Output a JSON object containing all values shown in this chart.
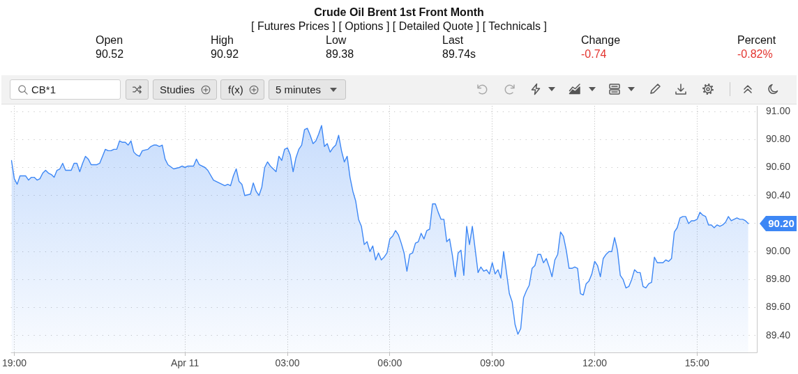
{
  "chart_data": {
    "type": "area",
    "title": "Crude Oil Brent 1st Front Month",
    "subtitle": "[ Futures Prices ] [ Options ] [ Detailed Quote ] [ Technicals ]",
    "annotations": [
      "Open",
      "90.52",
      "High",
      "90.92",
      "Low",
      "89.38",
      "Last",
      "89.74s",
      "Change",
      "-0.74",
      "Percent",
      "-0.82%",
      "CB*1",
      "Studies",
      "f(x)",
      "5 minutes",
      {
        "text": "90.20",
        "x": "--04-11T16:30",
        "y": 90.2
      }
    ],
    "x": [
      "--04-10T18:55",
      "--04-10T19:00",
      "--04-10T19:05",
      "--04-10T19:10",
      "--04-10T19:20",
      "--04-10T19:25",
      "--04-10T19:30",
      "--04-10T19:35",
      "--04-10T19:40",
      "--04-10T19:45",
      "--04-10T19:50",
      "--04-10T19:55",
      "--04-10T20:00",
      "--04-10T20:05",
      "--04-10T20:10",
      "--04-10T20:15",
      "--04-10T20:20",
      "--04-10T20:25",
      "--04-10T20:30",
      "--04-10T20:40",
      "--04-10T20:45",
      "--04-10T20:50",
      "--04-10T20:55",
      "--04-10T21:00",
      "--04-10T21:05",
      "--04-10T21:10",
      "--04-10T21:15",
      "--04-10T21:25",
      "--04-10T21:30",
      "--04-10T21:35",
      "--04-10T21:40",
      "--04-10T21:45",
      "--04-10T21:50",
      "--04-10T21:55",
      "--04-10T22:00",
      "--04-10T22:05",
      "--04-10T22:10",
      "--04-10T22:15",
      "--04-10T22:20",
      "--04-10T22:25",
      "--04-10T22:30",
      "--04-10T22:35",
      "--04-10T22:40",
      "--04-10T22:45",
      "--04-10T22:55",
      "--04-10T23:00",
      "--04-10T23:05",
      "--04-10T23:10",
      "--04-10T23:15",
      "--04-10T23:20",
      "--04-10T23:25",
      "--04-10T23:30",
      "--04-10T23:40",
      "--04-10T23:50",
      "--04-10T23:55",
      "--04-11T00:00",
      "--04-11T00:05",
      "--04-11T00:10",
      "--04-11T00:15",
      "--04-11T00:20",
      "--04-11T00:25",
      "--04-11T00:35",
      "--04-11T00:40",
      "--04-11T00:50",
      "--04-11T00:55",
      "--04-11T01:00",
      "--04-11T01:10",
      "--04-11T01:15",
      "--04-11T01:20",
      "--04-11T01:25",
      "--04-11T01:30",
      "--04-11T01:35",
      "--04-11T01:40",
      "--04-11T01:45",
      "--04-11T01:55",
      "--04-11T02:00",
      "--04-11T02:05",
      "--04-11T02:10",
      "--04-11T02:15",
      "--04-11T02:20",
      "--04-11T02:25",
      "--04-11T02:30",
      "--04-11T02:35",
      "--04-11T02:40",
      "--04-11T02:45",
      "--04-11T02:50",
      "--04-11T02:55",
      "--04-11T03:00",
      "--04-11T03:05",
      "--04-11T03:10",
      "--04-11T03:15",
      "--04-11T03:20",
      "--04-11T03:25",
      "--04-11T03:30",
      "--04-11T03:35",
      "--04-11T03:40",
      "--04-11T03:45",
      "--04-11T03:50",
      "--04-11T03:55",
      "--04-11T04:00",
      "--04-11T04:05",
      "--04-11T04:10",
      "--04-11T04:15",
      "--04-11T04:20",
      "--04-11T04:25",
      "--04-11T04:30",
      "--04-11T04:35",
      "--04-11T04:40",
      "--04-11T04:45",
      "--04-11T04:50",
      "--04-11T04:55",
      "--04-11T05:00",
      "--04-11T05:05",
      "--04-11T05:10",
      "--04-11T05:15",
      "--04-11T05:20",
      "--04-11T05:25",
      "--04-11T05:30",
      "--04-11T05:35",
      "--04-11T05:40",
      "--04-11T05:45",
      "--04-11T05:50",
      "--04-11T05:55",
      "--04-11T06:00",
      "--04-11T06:05",
      "--04-11T06:10",
      "--04-11T06:15",
      "--04-11T06:20",
      "--04-11T06:25",
      "--04-11T06:30",
      "--04-11T06:35",
      "--04-11T06:40",
      "--04-11T06:45",
      "--04-11T06:50",
      "--04-11T06:55",
      "--04-11T07:00",
      "--04-11T07:05",
      "--04-11T07:10",
      "--04-11T07:15",
      "--04-11T07:20",
      "--04-11T07:25",
      "--04-11T07:30",
      "--04-11T07:35",
      "--04-11T07:40",
      "--04-11T07:45",
      "--04-11T07:50",
      "--04-11T07:55",
      "--04-11T08:00",
      "--04-11T08:05",
      "--04-11T08:10",
      "--04-11T08:15",
      "--04-11T08:20",
      "--04-11T08:25",
      "--04-11T08:35",
      "--04-11T08:40",
      "--04-11T08:45",
      "--04-11T08:50",
      "--04-11T08:55",
      "--04-11T09:00",
      "--04-11T09:05",
      "--04-11T09:10",
      "--04-11T09:15",
      "--04-11T09:20",
      "--04-11T09:30",
      "--04-11T09:35",
      "--04-11T09:40",
      "--04-11T09:45",
      "--04-11T09:50",
      "--04-11T09:55",
      "--04-11T10:00",
      "--04-11T10:05",
      "--04-11T10:10",
      "--04-11T10:15",
      "--04-11T10:20",
      "--04-11T10:25",
      "--04-11T10:30",
      "--04-11T10:35",
      "--04-11T10:40",
      "--04-11T10:45",
      "--04-11T10:50",
      "--04-11T10:55",
      "--04-11T11:00",
      "--04-11T11:05",
      "--04-11T11:10",
      "--04-11T11:15",
      "--04-11T11:20",
      "--04-11T11:25",
      "--04-11T11:30",
      "--04-11T11:35",
      "--04-11T11:40",
      "--04-11T11:45",
      "--04-11T11:50",
      "--04-11T11:55",
      "--04-11T12:00",
      "--04-11T12:05",
      "--04-11T12:10",
      "--04-11T12:15",
      "--04-11T12:20",
      "--04-11T12:25",
      "--04-11T12:30",
      "--04-11T12:35",
      "--04-11T12:40",
      "--04-11T12:45",
      "--04-11T12:50",
      "--04-11T12:55",
      "--04-11T13:00",
      "--04-11T13:05",
      "--04-11T13:10",
      "--04-11T13:15",
      "--04-11T13:20",
      "--04-11T13:25",
      "--04-11T13:30",
      "--04-11T13:35",
      "--04-11T13:40",
      "--04-11T13:45",
      "--04-11T13:50",
      "--04-11T13:55",
      "--04-11T14:00",
      "--04-11T14:05",
      "--04-11T14:10",
      "--04-11T14:15",
      "--04-11T14:20",
      "--04-11T14:25",
      "--04-11T14:30",
      "--04-11T14:35",
      "--04-11T14:40",
      "--04-11T14:45",
      "--04-11T14:50",
      "--04-11T14:55",
      "--04-11T15:00",
      "--04-11T15:05",
      "--04-11T15:10",
      "--04-11T15:15",
      "--04-11T15:20",
      "--04-11T15:25",
      "--04-11T15:30",
      "--04-11T15:35",
      "--04-11T15:40",
      "--04-11T15:45",
      "--04-11T15:50",
      "--04-11T15:55",
      "--04-11T16:00",
      "--04-11T16:05",
      "--04-11T16:10",
      "--04-11T16:15",
      "--04-11T16:20",
      "--04-11T16:25",
      "--04-11T16:30"
    ],
    "values": [
      90.65,
      90.52,
      90.48,
      90.54,
      90.54,
      90.51,
      90.53,
      90.53,
      90.51,
      90.52,
      90.56,
      90.58,
      90.56,
      90.55,
      90.53,
      90.58,
      90.59,
      90.63,
      90.58,
      90.58,
      90.63,
      90.63,
      90.57,
      90.63,
      90.68,
      90.66,
      90.62,
      90.62,
      90.63,
      90.68,
      90.73,
      90.72,
      90.72,
      90.73,
      90.73,
      90.79,
      90.78,
      90.78,
      90.76,
      90.79,
      90.71,
      90.69,
      90.68,
      90.72,
      90.73,
      90.75,
      90.76,
      90.76,
      90.75,
      90.76,
      90.66,
      90.62,
      90.59,
      90.6,
      90.61,
      90.6,
      90.61,
      90.61,
      90.61,
      90.66,
      90.62,
      90.6,
      90.58,
      90.51,
      90.5,
      90.49,
      90.47,
      90.48,
      90.47,
      90.54,
      90.59,
      90.5,
      90.48,
      90.4,
      90.41,
      90.49,
      90.43,
      90.4,
      90.46,
      90.6,
      90.64,
      90.61,
      90.59,
      90.57,
      90.68,
      90.65,
      90.73,
      90.74,
      90.69,
      90.57,
      90.67,
      90.73,
      90.76,
      90.87,
      90.88,
      90.83,
      90.77,
      90.79,
      90.84,
      90.9,
      90.75,
      90.77,
      90.71,
      90.74,
      90.76,
      90.83,
      90.72,
      90.64,
      90.68,
      90.53,
      90.43,
      90.36,
      90.23,
      90.18,
      90.05,
      90.07,
      90.0,
      90.04,
      89.94,
      89.99,
      89.94,
      89.96,
      89.99,
      90.09,
      90.11,
      90.15,
      90.12,
      90.06,
      89.99,
      89.86,
      89.98,
      89.99,
      90.06,
      90.07,
      90.13,
      90.09,
      90.15,
      90.16,
      90.34,
      90.34,
      90.28,
      90.23,
      90.23,
      90.07,
      90.09,
      89.97,
      89.82,
      89.99,
      90.01,
      89.83,
      90.18,
      90.05,
      90.18,
      89.85,
      89.89,
      89.86,
      89.87,
      89.84,
      89.92,
      89.84,
      89.87,
      89.81,
      90.0,
      89.7,
      89.64,
      89.48,
      89.41,
      89.45,
      89.67,
      89.72,
      89.76,
      89.88,
      89.9,
      89.98,
      89.98,
      89.92,
      89.95,
      89.89,
      89.82,
      89.94,
      89.98,
      90.14,
      90.11,
      90.01,
      89.88,
      89.88,
      89.89,
      89.88,
      89.7,
      89.69,
      89.77,
      89.79,
      89.84,
      89.93,
      89.9,
      89.82,
      89.95,
      89.98,
      90.0,
      90.0,
      90.1,
      90.01,
      89.83,
      89.8,
      89.74,
      89.75,
      89.8,
      89.87,
      89.85,
      89.85,
      89.75,
      89.74,
      89.77,
      89.78,
      89.96,
      89.92,
      89.92,
      89.92,
      89.94,
      89.93,
      89.95,
      90.14,
      90.17,
      90.24,
      90.25,
      90.25,
      90.2,
      90.22,
      90.22,
      90.23,
      90.28,
      90.26,
      90.25,
      90.19,
      90.19,
      90.17,
      90.19,
      90.18,
      90.19,
      90.21,
      90.25,
      90.22,
      90.23,
      90.24,
      90.23,
      90.23,
      90.22,
      90.2
    ],
    "color": "#3d87f5",
    "xlim": [
      "--04-10T18:54",
      "--04-11T16:45"
    ],
    "xticks": [
      {
        "value": "--04-10T19:00",
        "label": "19:00"
      },
      {
        "value": "--04-11T00:00",
        "label": "Apr 11"
      },
      {
        "value": "--04-11T03:00",
        "label": "03:00"
      },
      {
        "value": "--04-11T06:00",
        "label": "06:00"
      },
      {
        "value": "--04-11T09:00",
        "label": "09:00"
      },
      {
        "value": "--04-11T12:00",
        "label": "12:00"
      },
      {
        "value": "--04-11T15:00",
        "label": "15:00"
      }
    ],
    "ylim": [
      89.28,
      91.04
    ],
    "yticks": [
      {
        "value": 89.4,
        "label": "89.40"
      },
      {
        "value": 89.6,
        "label": "89.60"
      },
      {
        "value": 89.8,
        "label": "89.80"
      },
      {
        "value": 90,
        "label": "90.00"
      },
      {
        "value": 90.2,
        "label": null
      },
      {
        "value": 90.4,
        "label": "90.40"
      },
      {
        "value": 90.6,
        "label": "90.60"
      },
      {
        "value": 90.8,
        "label": "90.80"
      },
      {
        "value": 91,
        "label": "91.00"
      }
    ],
    "grid": true
  }
}
